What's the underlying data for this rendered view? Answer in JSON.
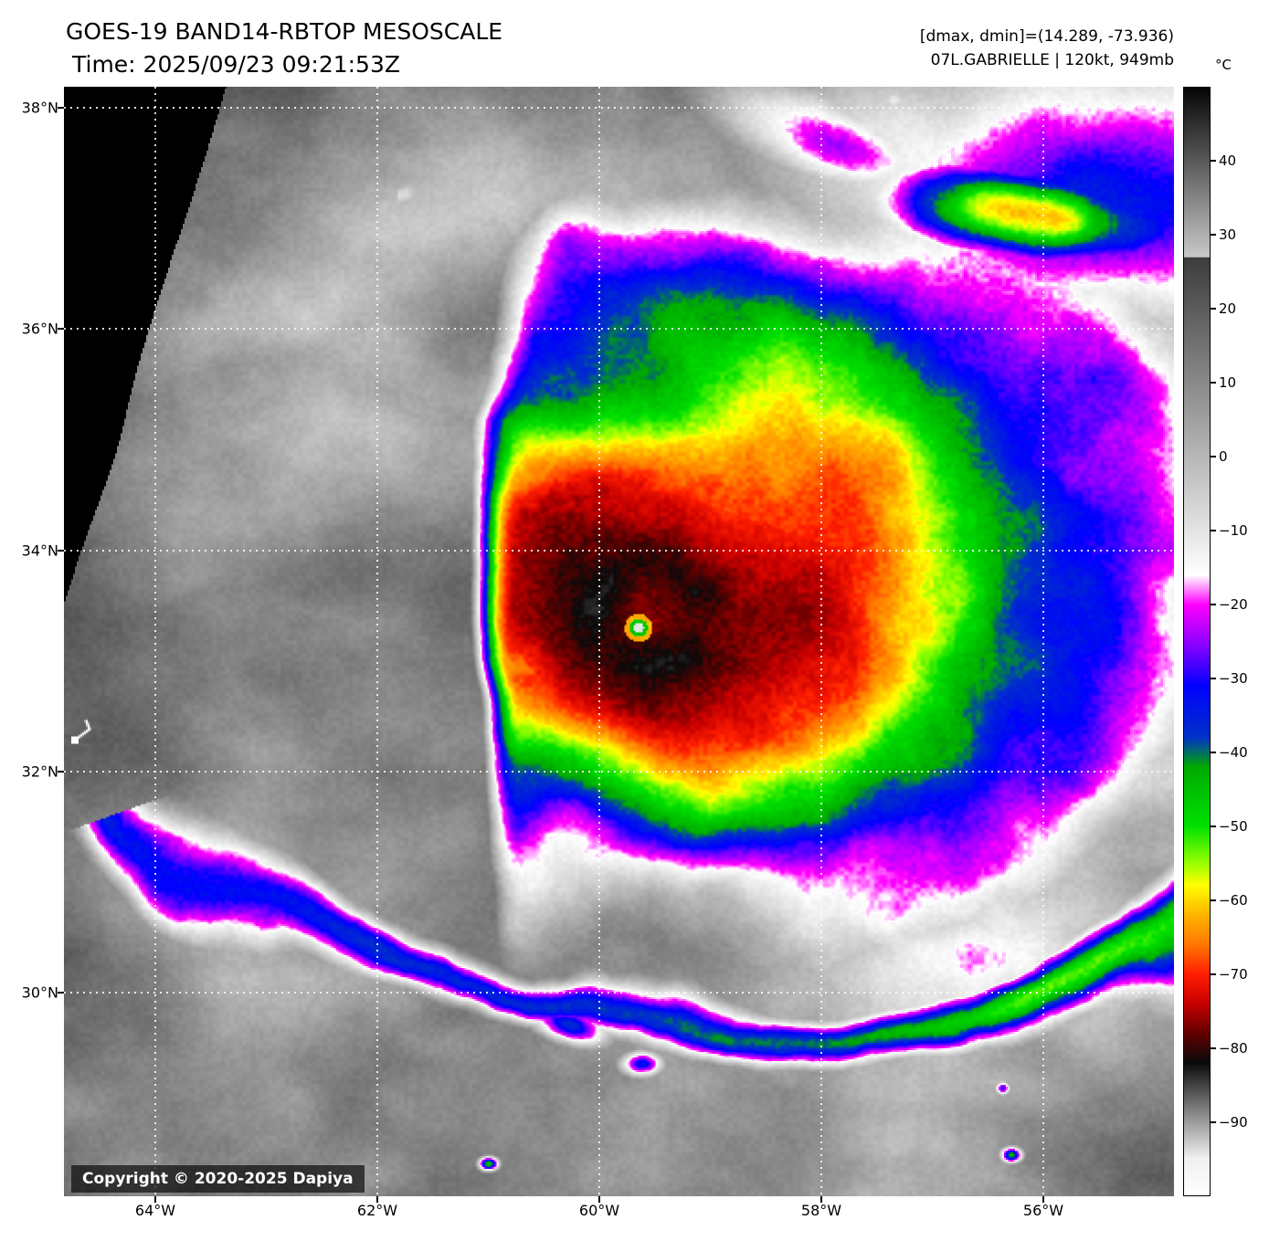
{
  "header": {
    "title": "GOES-19 BAND14-RBTOP MESOSCALE",
    "time": "Time: 2025/09/23 09:21:53Z",
    "dmax_dmin": "[dmax, dmin]=(14.289, -73.936)",
    "storm": "07L.GABRIELLE | 120kt, 949mb"
  },
  "map": {
    "copyright": "Copyright © 2020-2025 Dapiya",
    "grid": {
      "lat": [
        {
          "label": "38°N",
          "f": 0.0189
        },
        {
          "label": "36°N",
          "f": 0.2181
        },
        {
          "label": "34°N",
          "f": 0.4177
        },
        {
          "label": "32°N",
          "f": 0.6169
        },
        {
          "label": "30°N",
          "f": 0.8163
        }
      ],
      "lon": [
        {
          "label": "64°W",
          "f": 0.0823
        },
        {
          "label": "62°W",
          "f": 0.2823
        },
        {
          "label": "60°W",
          "f": 0.4823
        },
        {
          "label": "58°W",
          "f": 0.6823
        },
        {
          "label": "56°W",
          "f": 0.8823
        }
      ]
    }
  },
  "colorbar": {
    "unit": "°C",
    "domain": [
      50,
      -100
    ],
    "ticks": [
      "40",
      "30",
      "20",
      "10",
      "0",
      "−10",
      "−20",
      "−30",
      "−40",
      "−50",
      "−60",
      "−70",
      "−80",
      "−90"
    ],
    "stops": [
      [
        50,
        "#050505"
      ],
      [
        27.05,
        "#c8c8c8"
      ],
      [
        27,
        "#3c3c3c"
      ],
      [
        -16,
        "#ffffff"
      ],
      [
        -20,
        "#ff00ff"
      ],
      [
        -26,
        "#7d00ff"
      ],
      [
        -31,
        "#0000ff"
      ],
      [
        -38,
        "#0032c8"
      ],
      [
        -42,
        "#00aa00"
      ],
      [
        -50,
        "#00e100"
      ],
      [
        -55,
        "#96ff00"
      ],
      [
        -58,
        "#ffff00"
      ],
      [
        -62,
        "#ffb400"
      ],
      [
        -66,
        "#ff7800"
      ],
      [
        -70,
        "#ff1e00"
      ],
      [
        -74,
        "#c80000"
      ],
      [
        -78,
        "#640000"
      ],
      [
        -82,
        "#0a0a0a"
      ],
      [
        -88,
        "#787878"
      ],
      [
        -95,
        "#f0f0f0"
      ],
      [
        -100,
        "#ffffff"
      ]
    ]
  }
}
